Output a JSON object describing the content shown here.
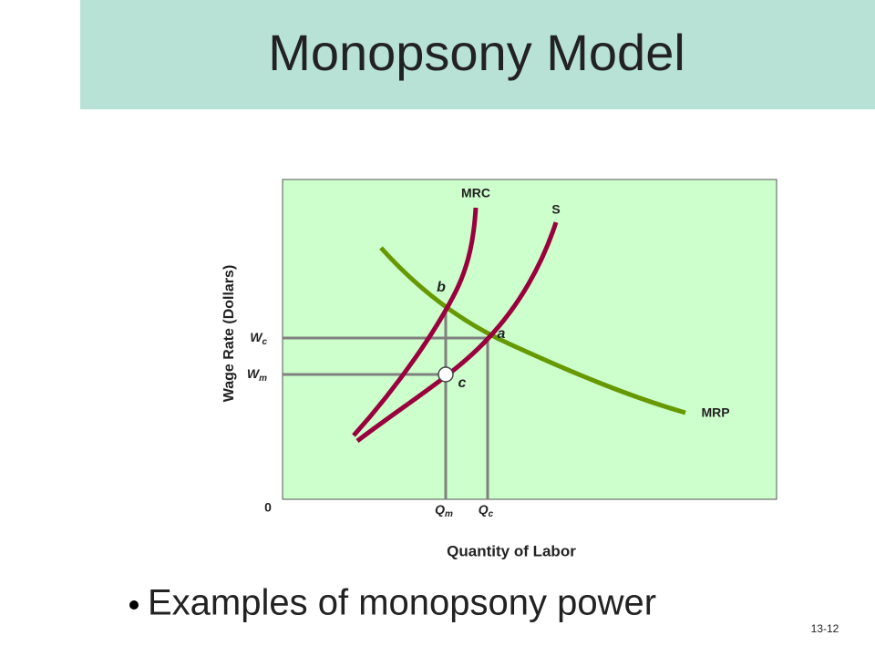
{
  "header": {
    "title": "Monopsony Model"
  },
  "diagram": {
    "y_axis_label": "Wage Rate (Dollars)",
    "x_axis_label": "Quantity of Labor",
    "origin_label": "0",
    "curves": [
      {
        "label": "MRC"
      },
      {
        "label": "S"
      },
      {
        "label": "MRP"
      }
    ],
    "points": [
      "b",
      "a",
      "c"
    ],
    "y_ticks": [
      {
        "base": "W",
        "sub": "c"
      },
      {
        "base": "W",
        "sub": "m"
      }
    ],
    "x_ticks": [
      {
        "base": "Q",
        "sub": "m"
      },
      {
        "base": "Q",
        "sub": "c"
      }
    ]
  },
  "bullets": [
    "Examples of monopsony power"
  ],
  "footer": {
    "slide_number": "13-12"
  }
}
